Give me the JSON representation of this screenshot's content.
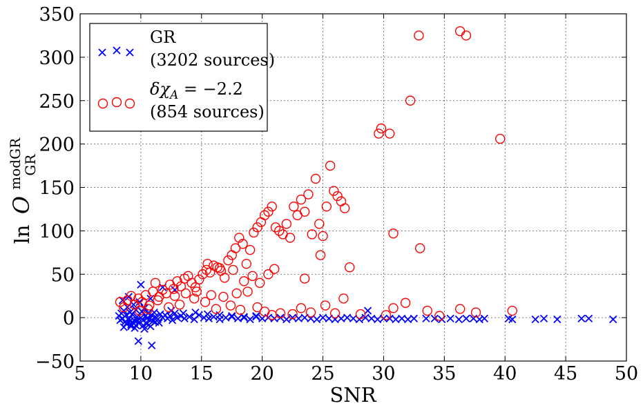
{
  "chart_data": {
    "type": "scatter",
    "title": "",
    "xlabel": "SNR",
    "ylabel_prefix": "ln",
    "ylabel_main": "O",
    "ylabel_sup": "modGR",
    "ylabel_sub": "GR",
    "xlim": [
      5,
      50
    ],
    "ylim": [
      -50,
      350
    ],
    "xticks": [
      5,
      10,
      15,
      20,
      25,
      30,
      35,
      40,
      45,
      50
    ],
    "yticks": [
      -50,
      0,
      50,
      100,
      150,
      200,
      250,
      300,
      350
    ],
    "xtick_labels": [
      "5",
      "10",
      "15",
      "20",
      "25",
      "30",
      "35",
      "40",
      "45",
      "50"
    ],
    "ytick_labels": [
      "−50",
      "0",
      "50",
      "100",
      "150",
      "200",
      "250",
      "300",
      "350"
    ],
    "grid": true,
    "legend_position": "top-left",
    "series": [
      {
        "name": "GR",
        "count_label": "(3202 sources)",
        "marker": "x",
        "color": "#0000ff",
        "points": [
          [
            8.2,
            2
          ],
          [
            8.3,
            -3
          ],
          [
            8.4,
            5
          ],
          [
            8.5,
            -1
          ],
          [
            8.6,
            8
          ],
          [
            8.7,
            -5
          ],
          [
            8.8,
            3
          ],
          [
            8.9,
            12
          ],
          [
            9.0,
            -2
          ],
          [
            9.1,
            6
          ],
          [
            9.2,
            -8
          ],
          [
            9.3,
            4
          ],
          [
            9.4,
            15
          ],
          [
            9.5,
            -4
          ],
          [
            9.6,
            9
          ],
          [
            9.7,
            1
          ],
          [
            9.8,
            -6
          ],
          [
            9.9,
            18
          ],
          [
            10.0,
            0
          ],
          [
            10.1,
            7
          ],
          [
            10.2,
            -3
          ],
          [
            10.3,
            11
          ],
          [
            10.4,
            2
          ],
          [
            10.5,
            -1
          ],
          [
            10.6,
            5
          ],
          [
            10.7,
            -2
          ],
          [
            10.8,
            22
          ],
          [
            10.9,
            3
          ],
          [
            11.0,
            -4
          ],
          [
            11.1,
            6
          ],
          [
            11.2,
            1
          ],
          [
            11.4,
            -2
          ],
          [
            11.6,
            4
          ],
          [
            11.8,
            0
          ],
          [
            12.0,
            3
          ],
          [
            12.2,
            -1
          ],
          [
            12.4,
            2
          ],
          [
            12.6,
            -3
          ],
          [
            12.8,
            5
          ],
          [
            13.0,
            0
          ],
          [
            13.3,
            2
          ],
          [
            13.6,
            -1
          ],
          [
            14.0,
            1
          ],
          [
            14.4,
            -2
          ],
          [
            14.8,
            3
          ],
          [
            15.2,
            0
          ],
          [
            15.6,
            -1
          ],
          [
            16.0,
            1
          ],
          [
            16.5,
            -2
          ],
          [
            17.0,
            0
          ],
          [
            17.5,
            1
          ],
          [
            18.0,
            -1
          ],
          [
            18.5,
            0
          ],
          [
            19.0,
            -2
          ],
          [
            19.5,
            1
          ],
          [
            20.0,
            -1
          ],
          [
            20.5,
            0
          ],
          [
            21.0,
            -1
          ],
          [
            21.5,
            0
          ],
          [
            22.0,
            -2
          ],
          [
            22.5,
            0
          ],
          [
            23.0,
            -1
          ],
          [
            23.5,
            0
          ],
          [
            24.0,
            -1
          ],
          [
            24.5,
            -2
          ],
          [
            25.0,
            0
          ],
          [
            25.5,
            -1
          ],
          [
            26.0,
            -2
          ],
          [
            26.5,
            -1
          ],
          [
            27.0,
            0
          ],
          [
            27.5,
            -1
          ],
          [
            28.0,
            -2
          ],
          [
            28.5,
            0
          ],
          [
            29.0,
            -1
          ],
          [
            29.5,
            -2
          ],
          [
            30.0,
            -1
          ],
          [
            30.5,
            -1
          ],
          [
            31.0,
            -2
          ],
          [
            31.5,
            -1
          ],
          [
            32.0,
            -2
          ],
          [
            32.5,
            -1
          ],
          [
            33.5,
            -1
          ],
          [
            34.2,
            -1
          ],
          [
            34.8,
            -2
          ],
          [
            35.5,
            -1
          ],
          [
            36.2,
            -2
          ],
          [
            36.8,
            -1
          ],
          [
            37.4,
            -1
          ],
          [
            37.9,
            -2
          ],
          [
            38.3,
            -1
          ],
          [
            40.3,
            -1
          ],
          [
            40.6,
            -2
          ],
          [
            42.5,
            -2
          ],
          [
            43.2,
            -1
          ],
          [
            44.3,
            -2
          ],
          [
            46.3,
            -1
          ],
          [
            46.9,
            -1
          ],
          [
            48.9,
            -2
          ],
          [
            9.8,
            -27
          ],
          [
            10.9,
            -32
          ],
          [
            10.0,
            38
          ],
          [
            11.8,
            35
          ],
          [
            12.8,
            32
          ],
          [
            9.2,
            -10
          ],
          [
            9.5,
            -12
          ],
          [
            10.2,
            -9
          ],
          [
            8.5,
            20
          ],
          [
            9.0,
            24
          ],
          [
            11.5,
            -6
          ],
          [
            12.5,
            8
          ],
          [
            13.5,
            5
          ],
          [
            14.5,
            6
          ],
          [
            15.5,
            4
          ],
          [
            16.5,
            3
          ],
          [
            17.5,
            2
          ],
          [
            18.5,
            1
          ],
          [
            19.5,
            2
          ],
          [
            28.7,
            8
          ],
          [
            9.3,
            -5
          ],
          [
            9.6,
            -9
          ],
          [
            10.5,
            -7
          ],
          [
            8.8,
            -7
          ],
          [
            9.1,
            -4
          ],
          [
            10.8,
            -10
          ],
          [
            11.2,
            -5
          ],
          [
            8.6,
            -11
          ],
          [
            10.3,
            -13
          ],
          [
            9.7,
            -3
          ]
        ]
      },
      {
        "name": "δχA = −2.2",
        "name_symbol": "δχ",
        "name_sub": "A",
        "name_value": " = −2.2",
        "count_label": "(854 sources)",
        "marker": "o",
        "color": "#ff0000",
        "points": [
          [
            8.3,
            18
          ],
          [
            8.6,
            12
          ],
          [
            8.9,
            20
          ],
          [
            9.2,
            25
          ],
          [
            9.5,
            15
          ],
          [
            9.8,
            22
          ],
          [
            10.1,
            18
          ],
          [
            10.4,
            26
          ],
          [
            10.7,
            14
          ],
          [
            11.0,
            30
          ],
          [
            11.2,
            40
          ],
          [
            11.5,
            24
          ],
          [
            11.8,
            32
          ],
          [
            12.1,
            28
          ],
          [
            12.4,
            38
          ],
          [
            12.7,
            33
          ],
          [
            13.0,
            42
          ],
          [
            13.3,
            36
          ],
          [
            13.6,
            45
          ],
          [
            13.9,
            48
          ],
          [
            14.2,
            40
          ],
          [
            14.5,
            35
          ],
          [
            14.8,
            44
          ],
          [
            15.1,
            50
          ],
          [
            15.4,
            55
          ],
          [
            15.7,
            52
          ],
          [
            16.0,
            60
          ],
          [
            16.3,
            58
          ],
          [
            16.6,
            54
          ],
          [
            16.9,
            46
          ],
          [
            17.2,
            66
          ],
          [
            17.5,
            72
          ],
          [
            17.8,
            80
          ],
          [
            18.1,
            92
          ],
          [
            18.4,
            85
          ],
          [
            18.7,
            62
          ],
          [
            19.0,
            78
          ],
          [
            19.3,
            98
          ],
          [
            19.6,
            104
          ],
          [
            19.9,
            110
          ],
          [
            20.2,
            118
          ],
          [
            20.5,
            122
          ],
          [
            20.8,
            128
          ],
          [
            21.1,
            104
          ],
          [
            21.4,
            100
          ],
          [
            21.7,
            96
          ],
          [
            22.0,
            108
          ],
          [
            22.3,
            92
          ],
          [
            22.6,
            128
          ],
          [
            22.9,
            118
          ],
          [
            23.2,
            136
          ],
          [
            23.5,
            122
          ],
          [
            23.8,
            142
          ],
          [
            24.1,
            96
          ],
          [
            24.4,
            160
          ],
          [
            24.7,
            108
          ],
          [
            25.0,
            94
          ],
          [
            25.3,
            128
          ],
          [
            25.6,
            175
          ],
          [
            25.9,
            146
          ],
          [
            26.2,
            140
          ],
          [
            26.5,
            134
          ],
          [
            26.8,
            126
          ],
          [
            27.2,
            58
          ],
          [
            30.8,
            97
          ],
          [
            33.0,
            80
          ],
          [
            23.5,
            45
          ],
          [
            24.8,
            72
          ],
          [
            15.5,
            62
          ],
          [
            16.5,
            57
          ],
          [
            17.6,
            55
          ],
          [
            18.5,
            42
          ],
          [
            19.2,
            48
          ],
          [
            19.8,
            40
          ],
          [
            20.5,
            50
          ],
          [
            21.0,
            56
          ],
          [
            29.6,
            212
          ],
          [
            29.8,
            218
          ],
          [
            30.5,
            212
          ],
          [
            32.2,
            250
          ],
          [
            32.9,
            325
          ],
          [
            36.3,
            330
          ],
          [
            36.8,
            325
          ],
          [
            39.6,
            206
          ],
          [
            26.7,
            22
          ],
          [
            30.8,
            11
          ],
          [
            31.8,
            17
          ],
          [
            33.6,
            8
          ],
          [
            36.3,
            10
          ],
          [
            37.6,
            6
          ],
          [
            40.6,
            8
          ],
          [
            25.2,
            14
          ],
          [
            23.2,
            11
          ],
          [
            21.5,
            5
          ],
          [
            20.2,
            7
          ],
          [
            18.2,
            9
          ],
          [
            17.4,
            14
          ],
          [
            16.2,
            10
          ],
          [
            15.3,
            18
          ],
          [
            14.4,
            22
          ],
          [
            13.2,
            15
          ],
          [
            12.3,
            12
          ],
          [
            11.4,
            20
          ],
          [
            10.6,
            10
          ],
          [
            9.9,
            8
          ],
          [
            12.8,
            25
          ],
          [
            13.7,
            28
          ],
          [
            14.6,
            30
          ],
          [
            15.8,
            26
          ],
          [
            16.8,
            24
          ],
          [
            17.9,
            28
          ],
          [
            18.8,
            30
          ],
          [
            19.6,
            12
          ],
          [
            20.8,
            3
          ],
          [
            22.5,
            4
          ],
          [
            24.0,
            6
          ],
          [
            26.0,
            5
          ],
          [
            28.1,
            4
          ],
          [
            30.2,
            3
          ],
          [
            34.6,
            2
          ]
        ]
      }
    ]
  }
}
